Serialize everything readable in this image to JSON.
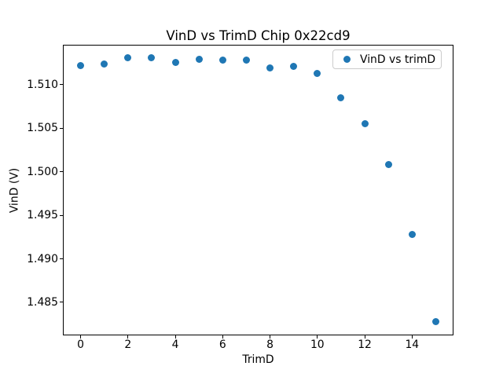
{
  "chart_data": {
    "type": "scatter",
    "title": "VinD vs TrimD Chip 0x22cd9",
    "xlabel": "TrimD",
    "ylabel": "VinD (V)",
    "legend": [
      "VinD vs trimD"
    ],
    "legend_position": "upper right",
    "marker_color": "#1f77b4",
    "grid": false,
    "x": [
      0,
      1,
      2,
      3,
      4,
      5,
      6,
      7,
      8,
      9,
      10,
      11,
      12,
      13,
      14,
      15
    ],
    "y": [
      1.5122,
      1.5124,
      1.5131,
      1.5131,
      1.5126,
      1.5129,
      1.5128,
      1.5128,
      1.5119,
      1.5121,
      1.5113,
      1.5085,
      1.5055,
      1.5008,
      1.4928,
      1.4828
    ],
    "xlim": [
      -0.75,
      15.75
    ],
    "ylim": [
      1.4812,
      1.5146
    ],
    "xticks": [
      0,
      2,
      4,
      6,
      8,
      10,
      12,
      14
    ],
    "xtick_labels": [
      "0",
      "2",
      "4",
      "6",
      "8",
      "10",
      "12",
      "14"
    ],
    "yticks": [
      1.485,
      1.49,
      1.495,
      1.5,
      1.505,
      1.51
    ],
    "ytick_labels": [
      "1.485",
      "1.490",
      "1.495",
      "1.500",
      "1.505",
      "1.510"
    ]
  }
}
